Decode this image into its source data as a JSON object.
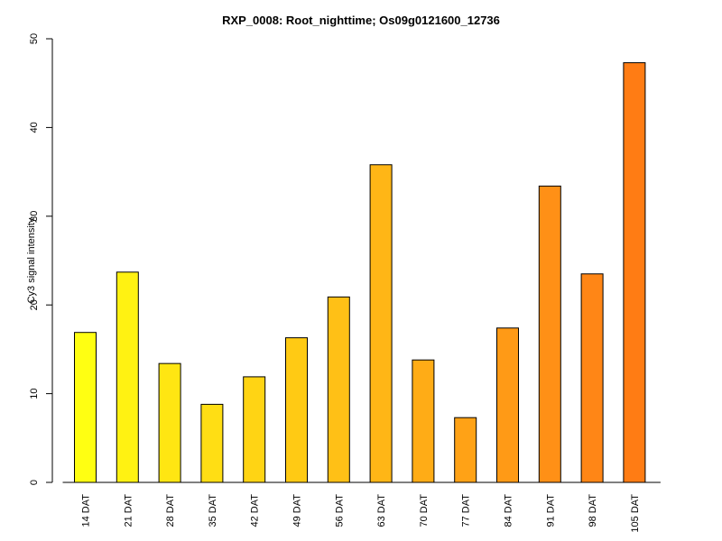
{
  "chart_data": {
    "type": "bar",
    "title": "RXP_0008: Root_nighttime; Os09g0121600_12736",
    "xlabel": "",
    "ylabel": "Cy3 signal intensity",
    "ylim": [
      0,
      50
    ],
    "yticks": [
      0,
      10,
      20,
      30,
      40,
      50
    ],
    "grid": false,
    "legend": "none",
    "categories": [
      "14 DAT",
      "21 DAT",
      "28 DAT",
      "35 DAT",
      "42 DAT",
      "49 DAT",
      "56 DAT",
      "63 DAT",
      "70 DAT",
      "77 DAT",
      "84 DAT",
      "91 DAT",
      "98 DAT",
      "105 DAT"
    ],
    "values": [
      16.9,
      23.7,
      13.4,
      8.8,
      11.9,
      16.3,
      20.9,
      35.8,
      13.8,
      7.3,
      17.4,
      33.4,
      23.5,
      47.3
    ],
    "colors": [
      "#FFFF12",
      "#FFF212",
      "#FFE612",
      "#FFDE14",
      "#FFD414",
      "#FFCA14",
      "#FFC016",
      "#FFB616",
      "#FFAC16",
      "#FFA216",
      "#FF9A16",
      "#FF9016",
      "#FF8616",
      "#FF7C14"
    ]
  }
}
